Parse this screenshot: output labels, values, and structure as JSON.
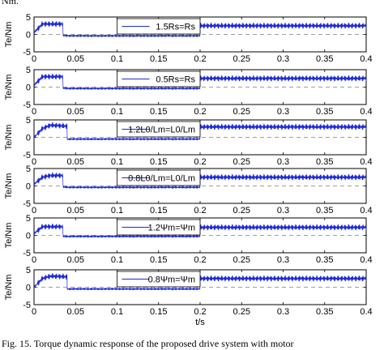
{
  "figure": {
    "top_text": "Nm.",
    "caption": "Fig. 15. Torque dynamic response of the proposed drive system with motor"
  },
  "colors": {
    "trace": "#1f2bd6",
    "dashed": "#7f7f7f",
    "axis": "#000000"
  },
  "chart_data": [
    {
      "type": "line",
      "title": "",
      "xlabel": "",
      "ylabel": "Te/Nm",
      "xlim": [
        0,
        0.4
      ],
      "ylim": [
        -5,
        5
      ],
      "grid": false,
      "legend": "top-center",
      "xticks": [
        "0",
        "0.05",
        "0.1",
        "0.15",
        "0.2",
        "0.25",
        "0.3",
        "0.35",
        "0.4"
      ],
      "yticks": [
        "5",
        "0",
        "-5"
      ],
      "legend_label": "1.5Rs=Rs",
      "series": [
        {
          "name": "1.5Rs=Rs",
          "x": [
            0,
            0.01,
            0.02,
            0.0349,
            0.035,
            0.045,
            0.05,
            0.1,
            0.15,
            0.1999,
            0.2,
            0.25,
            0.3,
            0.35,
            0.4
          ],
          "y": [
            0.5,
            3.0,
            3.0,
            3.0,
            -0.3,
            -0.4,
            -0.4,
            -0.4,
            -0.4,
            -0.4,
            2.5,
            2.5,
            2.5,
            2.5,
            2.5
          ]
        }
      ],
      "reference_lines": [
        {
          "y": 0,
          "style": "dashed"
        }
      ]
    },
    {
      "type": "line",
      "title": "",
      "xlabel": "",
      "ylabel": "Te/Nm",
      "xlim": [
        0,
        0.4
      ],
      "ylim": [
        -5,
        5
      ],
      "grid": false,
      "legend": "top-center",
      "xticks": [
        "0",
        "0.05",
        "0.1",
        "0.15",
        "0.2",
        "0.25",
        "0.3",
        "0.35",
        "0.4"
      ],
      "yticks": [
        "5",
        "0",
        "-5"
      ],
      "legend_label": "0.5Rs=Rs",
      "series": [
        {
          "name": "0.5Rs=Rs",
          "x": [
            0,
            0.01,
            0.02,
            0.0349,
            0.035,
            0.045,
            0.05,
            0.1,
            0.15,
            0.1999,
            0.2,
            0.25,
            0.3,
            0.35,
            0.4
          ],
          "y": [
            0.5,
            3.0,
            3.0,
            3.0,
            -0.3,
            -0.4,
            -0.4,
            -0.4,
            -0.4,
            -0.4,
            2.5,
            2.5,
            2.5,
            2.5,
            2.5
          ]
        }
      ],
      "reference_lines": [
        {
          "y": 0,
          "style": "dashed"
        }
      ]
    },
    {
      "type": "line",
      "title": "",
      "xlabel": "",
      "ylabel": "Te/Nm",
      "xlim": [
        0,
        0.4
      ],
      "ylim": [
        -5,
        5
      ],
      "grid": false,
      "legend": "top-center",
      "xticks": [
        "0",
        "0.05",
        "0.1",
        "0.15",
        "0.2",
        "0.25",
        "0.3",
        "0.35",
        "0.4"
      ],
      "yticks": [
        "5",
        "0",
        "-5"
      ],
      "legend_label": "1.2L0/Lm=L0/Lm",
      "series": [
        {
          "name": "1.2L0/Lm=L0/Lm",
          "x": [
            0,
            0.01,
            0.02,
            0.0399,
            0.04,
            0.045,
            0.05,
            0.1,
            0.15,
            0.1999,
            0.2,
            0.25,
            0.3,
            0.35,
            0.4
          ],
          "y": [
            0,
            2.5,
            3.5,
            3.2,
            -0.5,
            -0.5,
            -0.5,
            -0.5,
            -0.5,
            -0.5,
            3.0,
            3.0,
            3.0,
            3.0,
            3.0
          ]
        }
      ],
      "reference_lines": [
        {
          "y": 0,
          "style": "dashed"
        }
      ]
    },
    {
      "type": "line",
      "title": "",
      "xlabel": "",
      "ylabel": "Te/Nm",
      "xlim": [
        0,
        0.4
      ],
      "ylim": [
        -5,
        5
      ],
      "grid": false,
      "legend": "top-center",
      "xticks": [
        "0",
        "0.05",
        "0.1",
        "0.15",
        "0.2",
        "0.25",
        "0.3",
        "0.35",
        "0.4"
      ],
      "yticks": [
        "5",
        "0",
        "-5"
      ],
      "legend_label": "0.8L0/Lm=L0/Lm",
      "series": [
        {
          "name": "0.8L0/Lm=L0/Lm",
          "x": [
            0,
            0.01,
            0.02,
            0.0349,
            0.035,
            0.045,
            0.05,
            0.1,
            0.15,
            0.1999,
            0.2,
            0.25,
            0.3,
            0.35,
            0.4
          ],
          "y": [
            0.5,
            2.5,
            3.0,
            3.0,
            -0.3,
            -0.4,
            -0.4,
            -0.4,
            -0.4,
            -0.4,
            2.5,
            2.5,
            2.5,
            2.5,
            2.5
          ]
        }
      ],
      "reference_lines": [
        {
          "y": 0,
          "style": "dashed"
        }
      ]
    },
    {
      "type": "line",
      "title": "",
      "xlabel": "",
      "ylabel": "Te/Nm",
      "xlim": [
        0,
        0.4
      ],
      "ylim": [
        -5,
        5
      ],
      "grid": false,
      "legend": "top-center",
      "xticks": [
        "0",
        "0.05",
        "0.1",
        "0.15",
        "0.2",
        "0.25",
        "0.3",
        "0.35",
        "0.4"
      ],
      "yticks": [
        "5",
        "0",
        "-5"
      ],
      "legend_label": "1.2Ψm=Ψm",
      "series": [
        {
          "name": "1.2Ψm=Ψm",
          "x": [
            0,
            0.01,
            0.02,
            0.0349,
            0.035,
            0.045,
            0.05,
            0.1,
            0.15,
            0.1999,
            0.2,
            0.25,
            0.3,
            0.35,
            0.4
          ],
          "y": [
            0.5,
            2.5,
            2.5,
            2.5,
            -0.3,
            -0.3,
            -0.3,
            -0.3,
            -0.3,
            -0.3,
            2.3,
            2.3,
            2.3,
            2.3,
            2.3
          ]
        }
      ],
      "reference_lines": [
        {
          "y": 0,
          "style": "dashed"
        }
      ]
    },
    {
      "type": "line",
      "title": "",
      "xlabel": "t/s",
      "ylabel": "Te/Nm",
      "xlim": [
        0,
        0.4
      ],
      "ylim": [
        -5,
        5
      ],
      "grid": false,
      "legend": "top-center",
      "xticks": [
        "0",
        "0.05",
        "0.1",
        "0.15",
        "0.2",
        "0.25",
        "0.3",
        "0.35",
        "0.4"
      ],
      "yticks": [
        "5",
        "0",
        "-5"
      ],
      "legend_label": "0.8Ψm=Ψm",
      "series": [
        {
          "name": "0.8Ψm=Ψm",
          "x": [
            0,
            0.01,
            0.02,
            0.0399,
            0.04,
            0.045,
            0.05,
            0.1,
            0.15,
            0.1999,
            0.2,
            0.25,
            0.3,
            0.35,
            0.4
          ],
          "y": [
            0,
            2.5,
            3.2,
            3.0,
            -0.5,
            -0.5,
            -0.5,
            -0.5,
            -0.5,
            -0.5,
            2.5,
            2.5,
            2.5,
            2.5,
            2.5
          ]
        }
      ],
      "reference_lines": [
        {
          "y": 0,
          "style": "dashed"
        }
      ]
    }
  ]
}
